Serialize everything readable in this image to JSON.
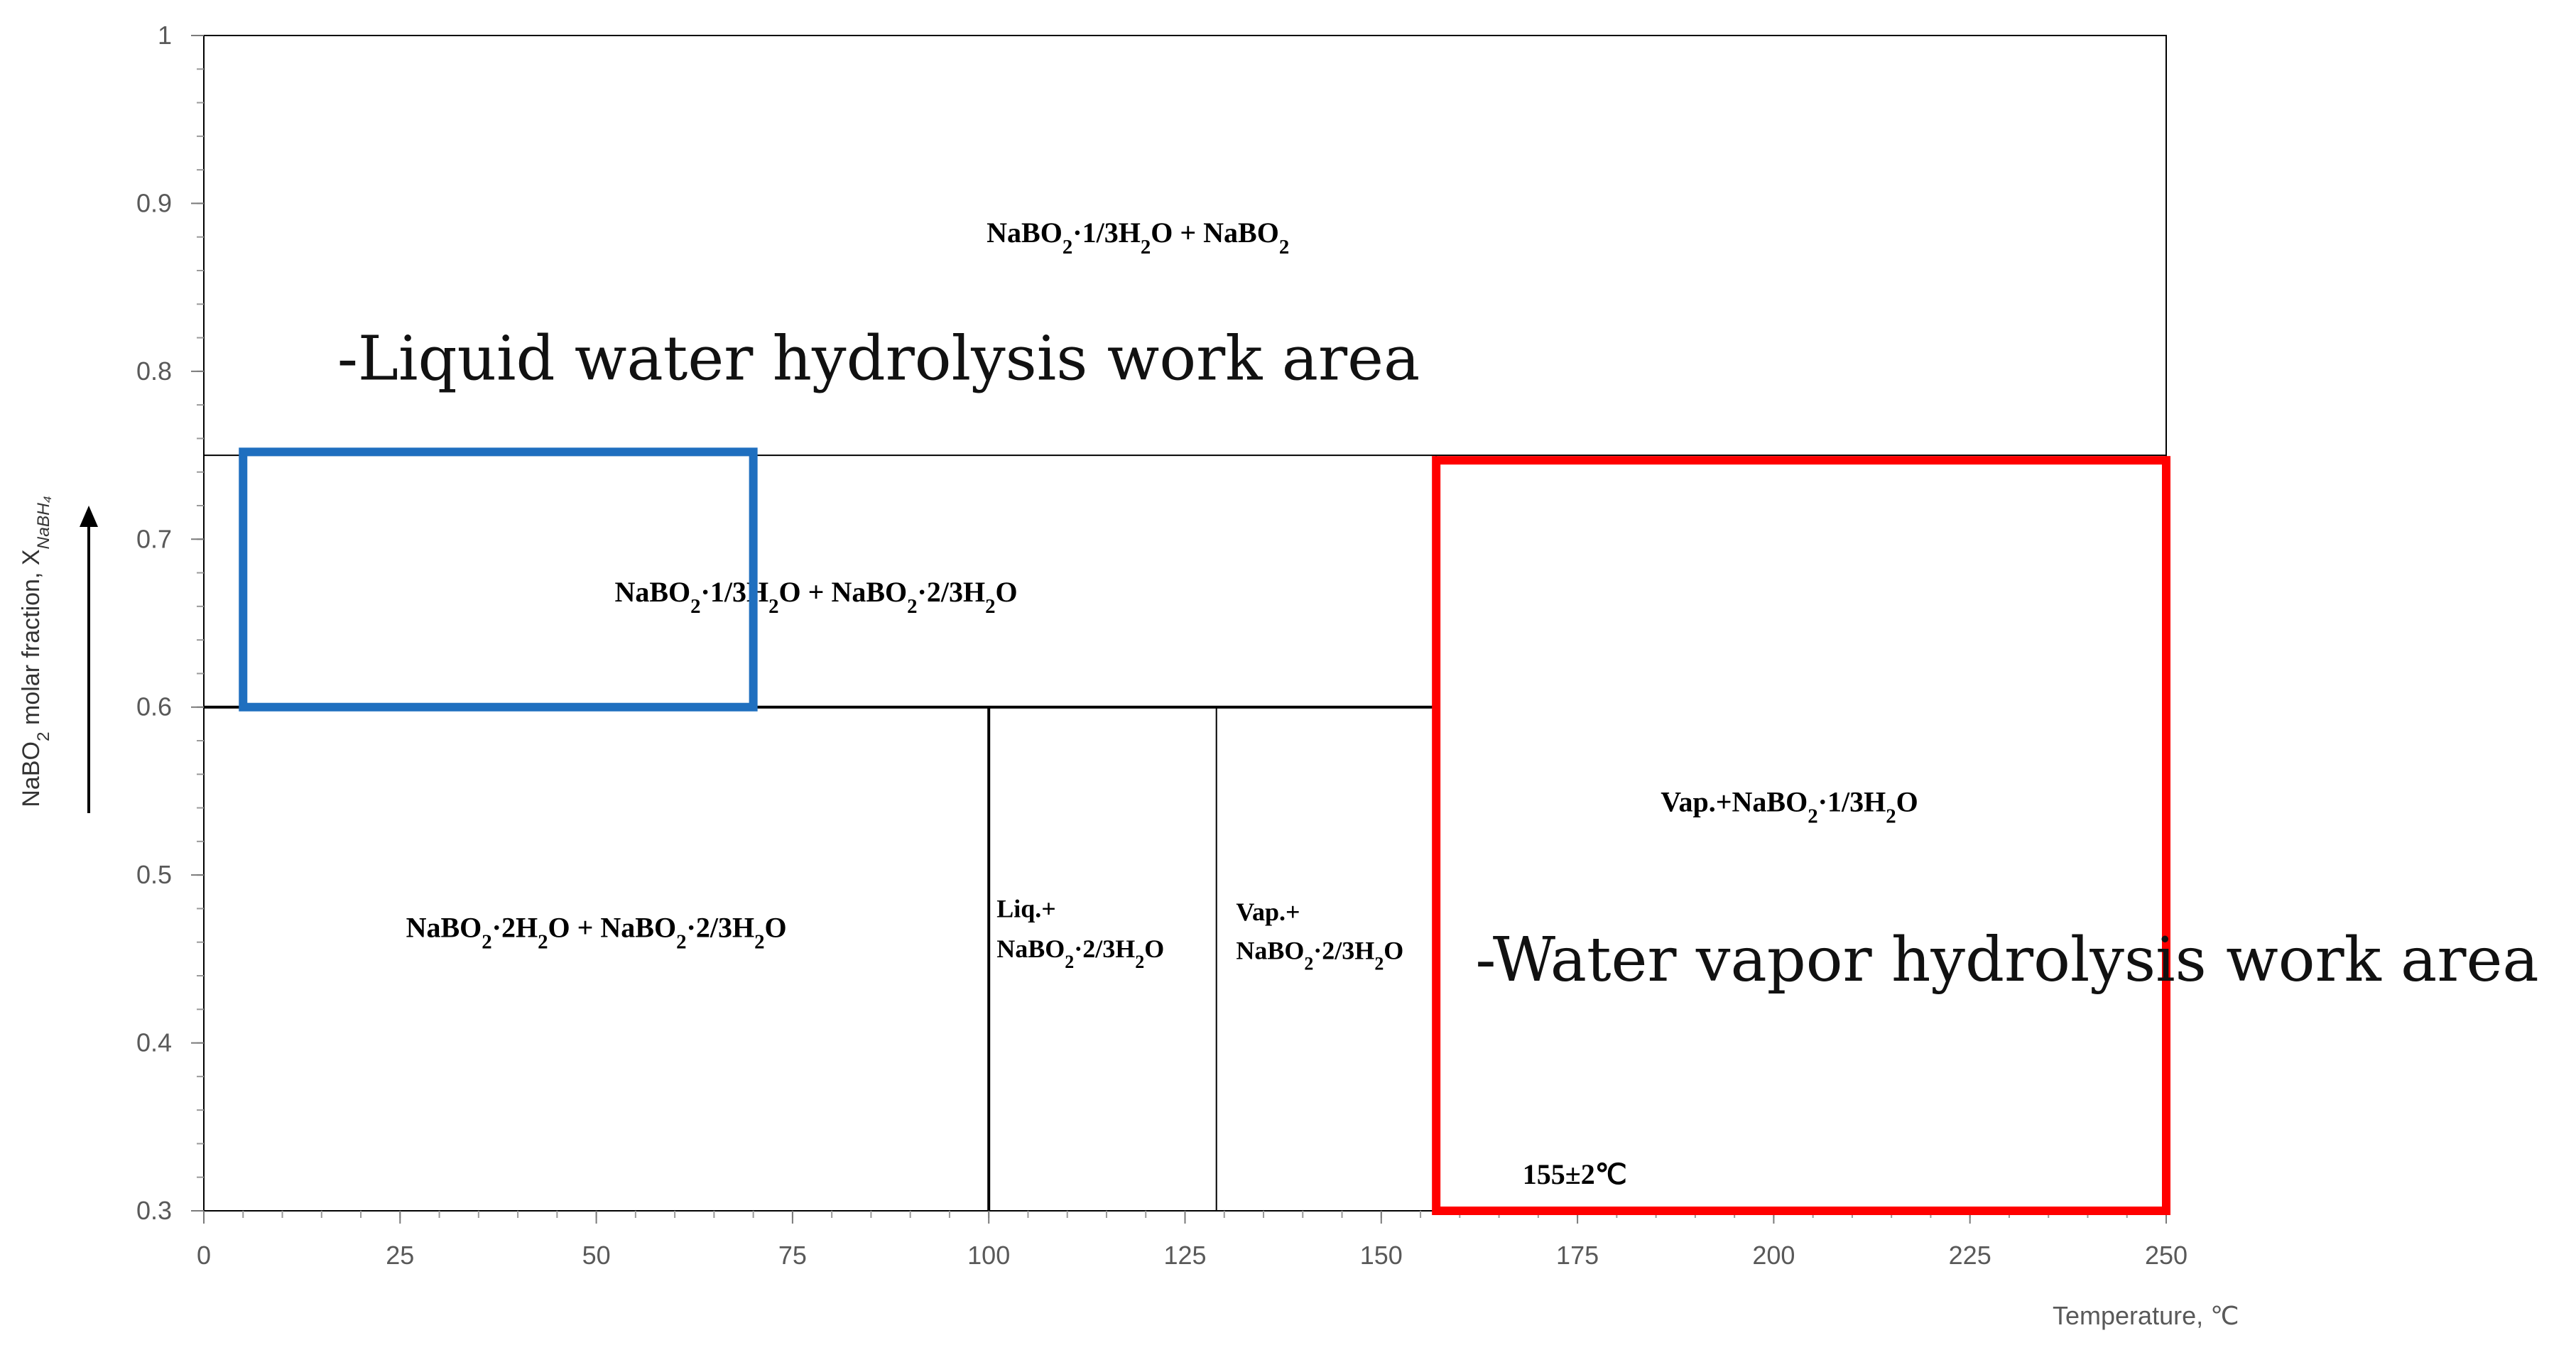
{
  "chart_data": {
    "type": "phase-diagram",
    "title": "",
    "xlabel": "Temperature, ℃",
    "ylabel": "NaBO₂ molar fraction, X",
    "ylabel_subscript": "NaBH₄",
    "xlim": [
      0,
      250
    ],
    "ylim": [
      0.3,
      1.0
    ],
    "xticks": [
      "0",
      "25",
      "50",
      "75",
      "100",
      "125",
      "150",
      "175",
      "200",
      "225",
      "250"
    ],
    "yticks": [
      "0.3",
      "0.4",
      "0.5",
      "0.6",
      "0.7",
      "0.8",
      "0.9",
      "1"
    ],
    "boundaries": [
      {
        "name": "upper-boundary",
        "x1": 0,
        "x2": 250,
        "y1": 0.75,
        "y2": 0.75
      },
      {
        "name": "middle-boundary",
        "x1": 0,
        "x2": 157,
        "y1": 0.6,
        "y2": 0.6
      },
      {
        "name": "liquid-boundary",
        "x1": 100,
        "x2": 100,
        "y1": 0.3,
        "y2": 0.6
      },
      {
        "name": "vapor-boundary",
        "x1": 129,
        "x2": 129,
        "y1": 0.3,
        "y2": 0.6
      },
      {
        "name": "transition-boundary",
        "x1": 157,
        "x2": 157,
        "y1": 0.3,
        "y2": 0.75
      }
    ],
    "phase_regions": [
      {
        "name": "region-top",
        "label": "NaBO₂·1/3H₂O + NaBO₂",
        "x": 119,
        "y": 0.877
      },
      {
        "name": "region-middle",
        "label": "NaBO₂·1/3H₂O + NaBO₂·2/3H₂O",
        "x": 78,
        "y": 0.663
      },
      {
        "name": "region-bottom-left",
        "label": "NaBO₂·2H₂O + NaBO₂·2/3H₂O",
        "x": 50,
        "y": 0.463
      },
      {
        "name": "region-vapor-right",
        "label": "Vap.+NaBO₂·1/3H₂O",
        "x": 202,
        "y": 0.538
      }
    ],
    "phase_regions_two_line": [
      {
        "name": "region-liquid",
        "line1": "Liq.+",
        "line2": "NaBO₂·2/3H₂O",
        "x": 101,
        "y1": 0.475,
        "y2": 0.451
      },
      {
        "name": "region-vapor-mid",
        "line1": "Vap.+",
        "line2": "NaBO₂·2/3H₂O",
        "x": 131.5,
        "y1": 0.473,
        "y2": 0.45
      }
    ],
    "annotations": [
      {
        "name": "transition-temperature-label",
        "text": "155±2℃",
        "x": 168,
        "y": 0.316
      }
    ],
    "work_areas": [
      {
        "name": "liquid-work-area-box",
        "label": "-Liquid water hydrolysis work area",
        "color": "#1f6fbf",
        "x": [
          5,
          70
        ],
        "y": [
          0.6,
          0.752
        ],
        "label_x": 17,
        "label_y": 0.795
      },
      {
        "name": "vapor-work-area-box",
        "label": "-Water vapor hydrolysis work area",
        "color": "#ff0000",
        "x": [
          157,
          250
        ],
        "y": [
          0.3,
          0.747
        ],
        "label_x": 162,
        "label_y": 0.437
      }
    ]
  }
}
